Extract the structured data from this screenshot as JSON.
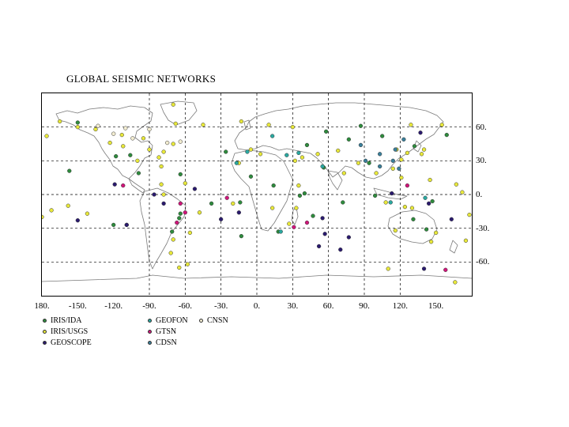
{
  "title": "GLOBAL SEISMIC NETWORKS",
  "map": {
    "lon_ticks": [
      "180.",
      "-150.",
      "-120.",
      "-90.",
      "-60.",
      "-30.",
      "0.",
      "30.",
      "60.",
      "90.",
      "120.",
      "150."
    ],
    "lat_ticks": [
      "60.",
      "30.",
      "0.",
      "-30.",
      "-60."
    ],
    "colors": {
      "coast": "#7a7a7a",
      "grid": "#000000",
      "frame": "#000000"
    }
  },
  "legend": [
    {
      "label": "IRIS/IDA",
      "color": "#2e8b3d"
    },
    {
      "label": "IRIS/USGS",
      "color": "#e8e83a"
    },
    {
      "label": "GEOSCOPE",
      "color": "#2a1a6e"
    },
    {
      "label": "GEOFON",
      "color": "#2aa8a0"
    },
    {
      "label": "GTSN",
      "color": "#d0157a"
    },
    {
      "label": "CDSN",
      "color": "#3a7f9a"
    },
    {
      "label": "CNSN",
      "color": "#f2ecd0"
    }
  ],
  "stations": [
    {
      "net": 0,
      "lon": -150,
      "lat": 64
    },
    {
      "net": 0,
      "lon": -118,
      "lat": 34
    },
    {
      "net": 0,
      "lon": -106,
      "lat": 35
    },
    {
      "net": 0,
      "lon": -71,
      "lat": -33
    },
    {
      "net": 0,
      "lon": -64,
      "lat": -17
    },
    {
      "net": 0,
      "lon": -65,
      "lat": -21
    },
    {
      "net": 0,
      "lon": -38,
      "lat": -8
    },
    {
      "net": 0,
      "lon": -26,
      "lat": 38
    },
    {
      "net": 0,
      "lon": -14,
      "lat": -7
    },
    {
      "net": 0,
      "lon": -13,
      "lat": -37
    },
    {
      "net": 0,
      "lon": -5,
      "lat": 16
    },
    {
      "net": 0,
      "lon": 14,
      "lat": 8
    },
    {
      "net": 0,
      "lon": 18,
      "lat": -33
    },
    {
      "net": 0,
      "lon": 36,
      "lat": -1
    },
    {
      "net": 0,
      "lon": 40,
      "lat": 1
    },
    {
      "net": 0,
      "lon": 47,
      "lat": -19
    },
    {
      "net": 0,
      "lon": 56,
      "lat": 24
    },
    {
      "net": 0,
      "lon": 42,
      "lat": 44
    },
    {
      "net": 0,
      "lon": 58,
      "lat": 56
    },
    {
      "net": 0,
      "lon": 77,
      "lat": 49
    },
    {
      "net": 0,
      "lon": 87,
      "lat": 61
    },
    {
      "net": 0,
      "lon": 105,
      "lat": 52
    },
    {
      "net": 0,
      "lon": 132,
      "lat": 43
    },
    {
      "net": 0,
      "lon": 159,
      "lat": 53
    },
    {
      "net": 0,
      "lon": 94,
      "lat": 28
    },
    {
      "net": 0,
      "lon": 72,
      "lat": -7
    },
    {
      "net": 0,
      "lon": 99,
      "lat": -1
    },
    {
      "net": 0,
      "lon": 142,
      "lat": -31
    },
    {
      "net": 0,
      "lon": 147,
      "lat": -6
    },
    {
      "net": 0,
      "lon": 131,
      "lat": -22
    },
    {
      "net": 0,
      "lon": -157,
      "lat": 21
    },
    {
      "net": 0,
      "lon": -120,
      "lat": -27
    },
    {
      "net": 0,
      "lon": -64,
      "lat": 18
    },
    {
      "net": 0,
      "lon": -99,
      "lat": 19
    },
    {
      "net": 1,
      "lon": -150,
      "lat": 60
    },
    {
      "net": 1,
      "lon": -176,
      "lat": 52
    },
    {
      "net": 1,
      "lon": -165,
      "lat": 65
    },
    {
      "net": 1,
      "lon": -135,
      "lat": 58
    },
    {
      "net": 1,
      "lon": -113,
      "lat": 53
    },
    {
      "net": 1,
      "lon": -95,
      "lat": 50
    },
    {
      "net": 1,
      "lon": -90,
      "lat": 40
    },
    {
      "net": 1,
      "lon": -78,
      "lat": 38
    },
    {
      "net": 1,
      "lon": -82,
      "lat": 33
    },
    {
      "net": 1,
      "lon": -100,
      "lat": 30
    },
    {
      "net": 1,
      "lon": -70,
      "lat": 45
    },
    {
      "net": 1,
      "lon": -112,
      "lat": 43
    },
    {
      "net": 1,
      "lon": -123,
      "lat": 46
    },
    {
      "net": 1,
      "lon": -80,
      "lat": 25
    },
    {
      "net": 1,
      "lon": -68,
      "lat": 63
    },
    {
      "net": 1,
      "lon": -45,
      "lat": 62
    },
    {
      "net": 1,
      "lon": -70,
      "lat": 80
    },
    {
      "net": 1,
      "lon": -60,
      "lat": 10
    },
    {
      "net": 1,
      "lon": -80,
      "lat": 9
    },
    {
      "net": 1,
      "lon": -78,
      "lat": 0
    },
    {
      "net": 1,
      "lon": -48,
      "lat": -16
    },
    {
      "net": 1,
      "lon": -56,
      "lat": -34
    },
    {
      "net": 1,
      "lon": -72,
      "lat": -52
    },
    {
      "net": 1,
      "lon": -58,
      "lat": -62
    },
    {
      "net": 1,
      "lon": -70,
      "lat": -40
    },
    {
      "net": 1,
      "lon": -13,
      "lat": 65
    },
    {
      "net": 1,
      "lon": -5,
      "lat": 40
    },
    {
      "net": 1,
      "lon": 3,
      "lat": 36
    },
    {
      "net": 1,
      "lon": -15,
      "lat": 28
    },
    {
      "net": 1,
      "lon": -20,
      "lat": -8
    },
    {
      "net": 1,
      "lon": 13,
      "lat": -12
    },
    {
      "net": 1,
      "lon": 27,
      "lat": -26
    },
    {
      "net": 1,
      "lon": 33,
      "lat": -12
    },
    {
      "net": 1,
      "lon": 35,
      "lat": 8
    },
    {
      "net": 1,
      "lon": 38,
      "lat": 33
    },
    {
      "net": 1,
      "lon": 32,
      "lat": 30
    },
    {
      "net": 1,
      "lon": 51,
      "lat": 36
    },
    {
      "net": 1,
      "lon": 68,
      "lat": 39
    },
    {
      "net": 1,
      "lon": 73,
      "lat": 19
    },
    {
      "net": 1,
      "lon": 85,
      "lat": 28
    },
    {
      "net": 1,
      "lon": 100,
      "lat": 19
    },
    {
      "net": 1,
      "lon": 117,
      "lat": 40
    },
    {
      "net": 1,
      "lon": 121,
      "lat": 31
    },
    {
      "net": 1,
      "lon": 114,
      "lat": 23
    },
    {
      "net": 1,
      "lon": 126,
      "lat": 37
    },
    {
      "net": 1,
      "lon": 138,
      "lat": 36
    },
    {
      "net": 1,
      "lon": 140,
      "lat": 40
    },
    {
      "net": 1,
      "lon": 121,
      "lat": 15
    },
    {
      "net": 1,
      "lon": 145,
      "lat": 13
    },
    {
      "net": 1,
      "lon": 108,
      "lat": -7
    },
    {
      "net": 1,
      "lon": 124,
      "lat": -11
    },
    {
      "net": 1,
      "lon": 150,
      "lat": -34
    },
    {
      "net": 1,
      "lon": 130,
      "lat": -12
    },
    {
      "net": 1,
      "lon": 116,
      "lat": -32
    },
    {
      "net": 1,
      "lon": 146,
      "lat": -42
    },
    {
      "net": 1,
      "lon": 175,
      "lat": -41
    },
    {
      "net": 1,
      "lon": 178,
      "lat": -18
    },
    {
      "net": 1,
      "lon": -172,
      "lat": -14
    },
    {
      "net": 1,
      "lon": -158,
      "lat": -10
    },
    {
      "net": 1,
      "lon": -180,
      "lat": -20
    },
    {
      "net": 1,
      "lon": 166,
      "lat": -78
    },
    {
      "net": 1,
      "lon": -65,
      "lat": -65
    },
    {
      "net": 1,
      "lon": 110,
      "lat": -66
    },
    {
      "net": 1,
      "lon": 167,
      "lat": 9
    },
    {
      "net": 1,
      "lon": 172,
      "lat": 2
    },
    {
      "net": 1,
      "lon": 155,
      "lat": 62
    },
    {
      "net": 1,
      "lon": 129,
      "lat": 62
    },
    {
      "net": 1,
      "lon": 30,
      "lat": 60
    },
    {
      "net": 1,
      "lon": 10,
      "lat": 62
    },
    {
      "net": 1,
      "lon": -142,
      "lat": -17
    },
    {
      "net": 1,
      "lon": -109,
      "lat": -27
    },
    {
      "net": 2,
      "lon": -86,
      "lat": 0
    },
    {
      "net": 2,
      "lon": -78,
      "lat": -8
    },
    {
      "net": 2,
      "lon": -119,
      "lat": 9
    },
    {
      "net": 2,
      "lon": -52,
      "lat": 5
    },
    {
      "net": 2,
      "lon": 55,
      "lat": -21
    },
    {
      "net": 2,
      "lon": 57,
      "lat": -35
    },
    {
      "net": 2,
      "lon": 52,
      "lat": -46
    },
    {
      "net": 2,
      "lon": 70,
      "lat": -49
    },
    {
      "net": 2,
      "lon": 77,
      "lat": -38
    },
    {
      "net": 2,
      "lon": 140,
      "lat": -66
    },
    {
      "net": 2,
      "lon": 163,
      "lat": -22
    },
    {
      "net": 2,
      "lon": 144,
      "lat": -8
    },
    {
      "net": 2,
      "lon": -150,
      "lat": -23
    },
    {
      "net": 2,
      "lon": -30,
      "lat": -22
    },
    {
      "net": 2,
      "lon": 137,
      "lat": 55
    },
    {
      "net": 2,
      "lon": 113,
      "lat": 1
    },
    {
      "net": 2,
      "lon": -15,
      "lat": -16
    },
    {
      "net": 2,
      "lon": -109,
      "lat": -27
    },
    {
      "net": 3,
      "lon": 13,
      "lat": 52
    },
    {
      "net": 3,
      "lon": 35,
      "lat": 37
    },
    {
      "net": 3,
      "lon": 25,
      "lat": 35
    },
    {
      "net": 3,
      "lon": -17,
      "lat": 28
    },
    {
      "net": 3,
      "lon": 20,
      "lat": -33
    },
    {
      "net": 3,
      "lon": 112,
      "lat": -7
    },
    {
      "net": 3,
      "lon": 141,
      "lat": -3
    },
    {
      "net": 3,
      "lon": -8,
      "lat": 38
    },
    {
      "net": 3,
      "lon": 55,
      "lat": 25
    },
    {
      "net": 4,
      "lon": -60,
      "lat": -16
    },
    {
      "net": 4,
      "lon": -67,
      "lat": -25
    },
    {
      "net": 4,
      "lon": -64,
      "lat": -8
    },
    {
      "net": 4,
      "lon": -25,
      "lat": -3
    },
    {
      "net": 4,
      "lon": 31,
      "lat": -29
    },
    {
      "net": 4,
      "lon": -112,
      "lat": 8
    },
    {
      "net": 4,
      "lon": 126,
      "lat": 8
    },
    {
      "net": 4,
      "lon": 158,
      "lat": -67
    },
    {
      "net": 4,
      "lon": 42,
      "lat": -25
    },
    {
      "net": 5,
      "lon": 116,
      "lat": 40
    },
    {
      "net": 5,
      "lon": 103,
      "lat": 25
    },
    {
      "net": 5,
      "lon": 87,
      "lat": 44
    },
    {
      "net": 5,
      "lon": 123,
      "lat": 49
    },
    {
      "net": 5,
      "lon": 91,
      "lat": 30
    },
    {
      "net": 5,
      "lon": 114,
      "lat": 30
    },
    {
      "net": 5,
      "lon": 103,
      "lat": 36
    },
    {
      "net": 5,
      "lon": 119,
      "lat": 23
    },
    {
      "net": 6,
      "lon": -104,
      "lat": 50
    },
    {
      "net": 6,
      "lon": -120,
      "lat": 54
    },
    {
      "net": 6,
      "lon": -110,
      "lat": 59
    },
    {
      "net": 6,
      "lon": -90,
      "lat": 58
    },
    {
      "net": 6,
      "lon": -75,
      "lat": 46
    },
    {
      "net": 6,
      "lon": -64,
      "lat": 47
    },
    {
      "net": 6,
      "lon": -133,
      "lat": 61
    }
  ],
  "coast_labels": []
}
